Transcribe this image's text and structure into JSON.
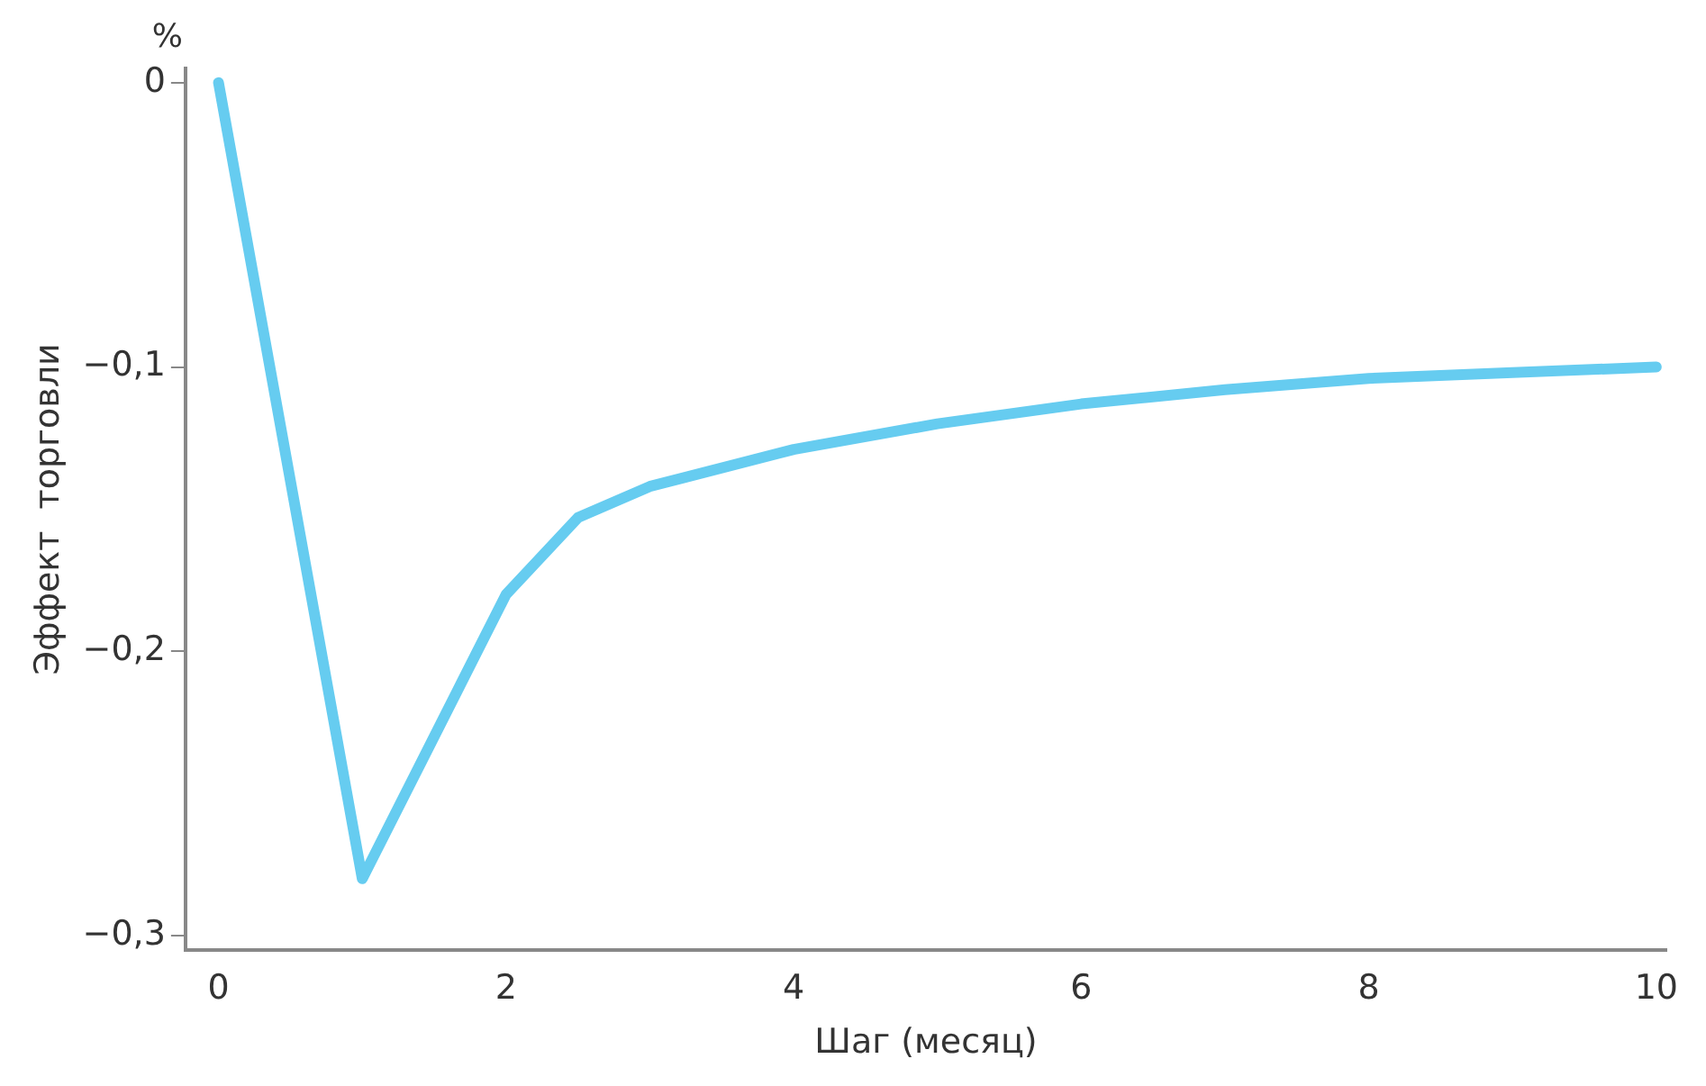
{
  "chart_data": {
    "type": "line",
    "xlabel": "Шаг (месяц)",
    "ylabel": "Эффект  торговли",
    "annotations": [
      "%"
    ],
    "x": [
      0,
      1,
      2,
      2.5,
      3,
      4,
      5,
      6,
      7,
      8,
      9,
      10
    ],
    "series": [
      {
        "color": "#66ccf0",
        "values": [
          0,
          -0.28,
          -0.18,
          -0.153,
          -0.142,
          -0.129,
          -0.12,
          -0.113,
          -0.108,
          -0.104,
          -0.102,
          -0.1
        ]
      }
    ],
    "xlim": [
      -0.23,
      10.07
    ],
    "xticks": [
      0,
      2,
      4,
      6,
      8,
      10
    ],
    "ylim": [
      -0.305,
      0.005
    ],
    "yticks": [
      {
        "value": 0,
        "label": "0"
      },
      {
        "value": -0.1,
        "label": "−0,1"
      },
      {
        "value": -0.2,
        "label": "−0,2"
      },
      {
        "value": -0.3,
        "label": "−0,3"
      }
    ],
    "grid": false,
    "legend": false,
    "marker": "none",
    "line_style": "solid"
  }
}
